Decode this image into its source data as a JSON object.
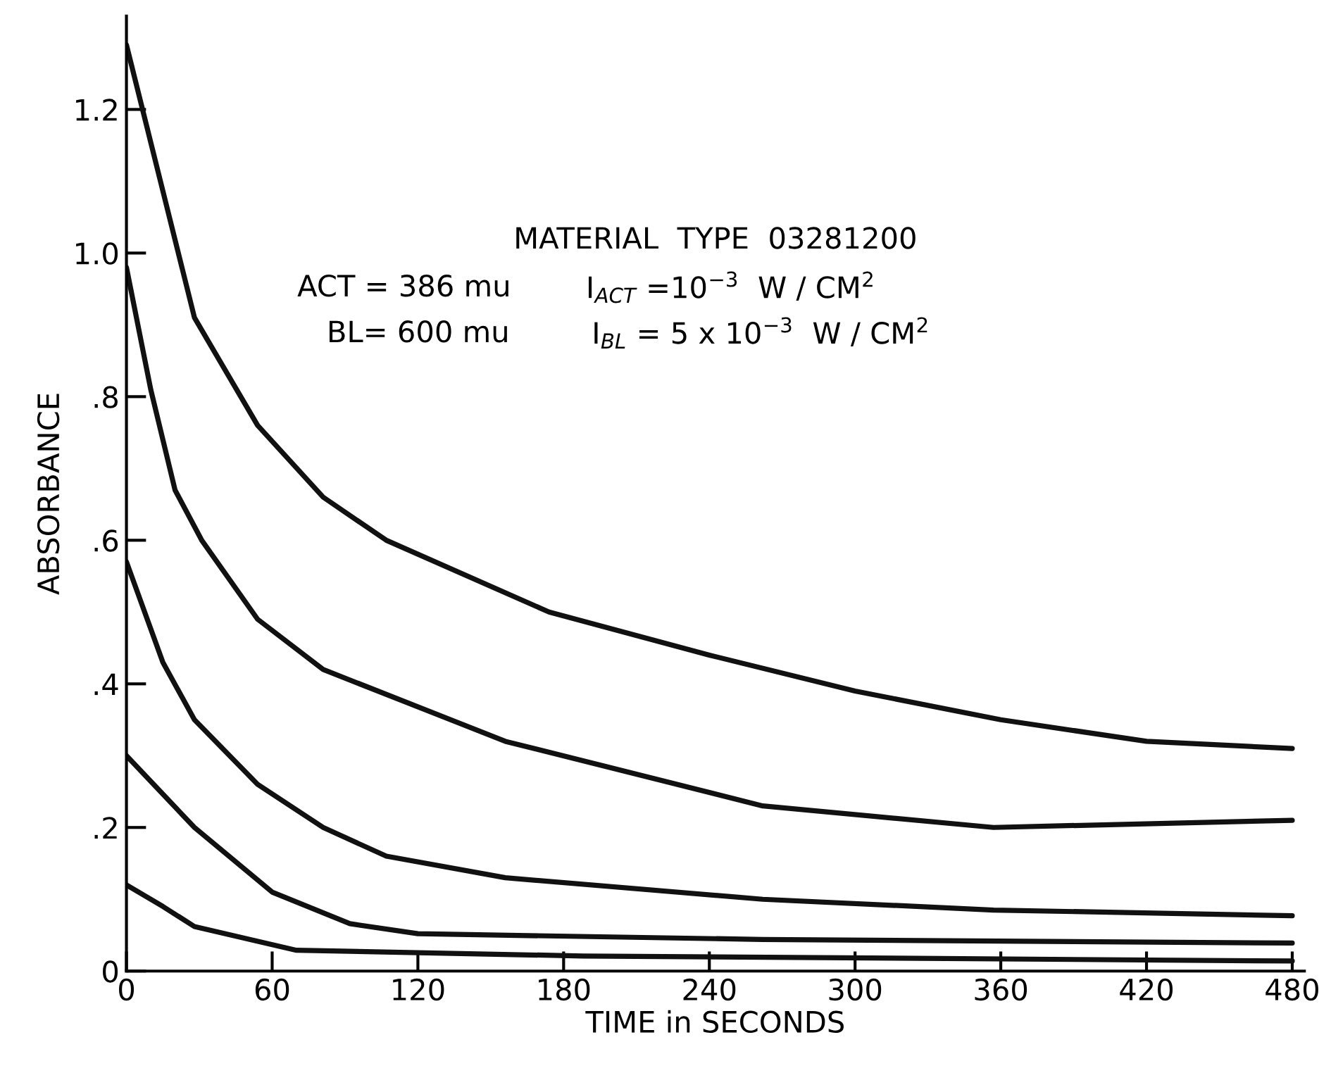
{
  "chart_data": {
    "type": "line",
    "xlabel": "TIME in SECONDS",
    "ylabel": "ABSORBANCE",
    "xlim": [
      0,
      485
    ],
    "ylim": [
      0,
      1.33
    ],
    "xticks": [
      0,
      60,
      120,
      180,
      240,
      300,
      360,
      420,
      480
    ],
    "yticks": [
      0,
      {
        "value": 0.2,
        "label": ".2"
      },
      {
        "value": 0.4,
        "label": ".4"
      },
      {
        "value": 0.6,
        "label": ".6"
      },
      {
        "value": 0.8,
        "label": ".8"
      },
      {
        "value": 1.0,
        "label": "1.0"
      },
      {
        "value": 1.2,
        "label": "1.2"
      }
    ],
    "grid": false,
    "legend": false,
    "marker": "none",
    "line_style": "solid",
    "annotations": [
      "MATERIAL  TYPE  03281200",
      "ACT = 386 mu",
      "BL= 600 mu",
      "I$_{ACT}$ =10$^{−3}$  W / CM$^{2}$",
      "I$_{BL}$ = 5 x 10$^{−3}$  W / CM$^{2}$"
    ],
    "series": [
      {
        "color": "#111111",
        "x": [
          0,
          28,
          54,
          81,
          107,
          174,
          240,
          300,
          360,
          420,
          480
        ],
        "values": [
          1.29,
          0.91,
          0.76,
          0.66,
          0.6,
          0.5,
          0.44,
          0.39,
          0.35,
          0.32,
          0.31
        ]
      },
      {
        "color": "#111111",
        "x": [
          0,
          10,
          20,
          31,
          54,
          81,
          156,
          262,
          357,
          480
        ],
        "values": [
          0.98,
          0.81,
          0.67,
          0.6,
          0.49,
          0.42,
          0.32,
          0.23,
          0.2,
          0.21
        ]
      },
      {
        "color": "#111111",
        "x": [
          0,
          15,
          28,
          54,
          81,
          107,
          156,
          262,
          357,
          480
        ],
        "values": [
          0.57,
          0.43,
          0.35,
          0.26,
          0.2,
          0.16,
          0.13,
          0.1,
          0.085,
          0.077
        ]
      },
      {
        "color": "#111111",
        "x": [
          0,
          28,
          60,
          92,
          120,
          262,
          480
        ],
        "values": [
          0.3,
          0.2,
          0.11,
          0.066,
          0.052,
          0.044,
          0.039
        ]
      },
      {
        "color": "#111111",
        "x": [
          0,
          15,
          28,
          70,
          188,
          480
        ],
        "values": [
          0.12,
          0.09,
          0.062,
          0.029,
          0.021,
          0.014
        ]
      }
    ]
  }
}
